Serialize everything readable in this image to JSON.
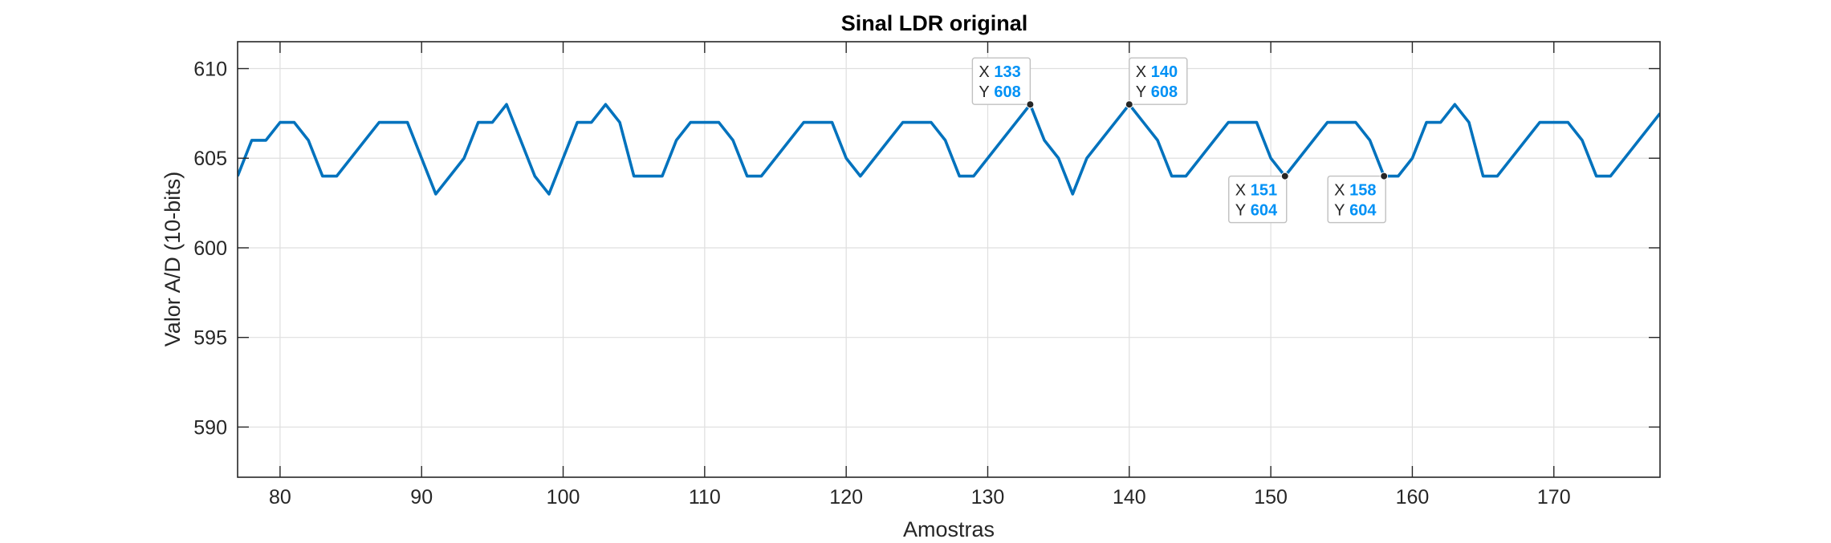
{
  "chart_data": {
    "type": "line",
    "title": "Sinal LDR original",
    "xlabel": "Amostras",
    "ylabel": "Valor A/D (10-bits)",
    "xlim": [
      77,
      177.5
    ],
    "ylim": [
      587.2,
      611.5
    ],
    "xticks": [
      80,
      90,
      100,
      110,
      120,
      130,
      140,
      150,
      160,
      170
    ],
    "yticks": [
      590,
      595,
      600,
      605,
      610
    ],
    "grid": true,
    "series": [
      {
        "color": "#0072BD",
        "x": [
          77,
          78,
          79,
          80,
          81,
          82,
          83,
          84,
          85,
          86,
          87,
          88,
          89,
          90,
          91,
          92,
          93,
          94,
          95,
          96,
          97,
          98,
          99,
          100,
          101,
          102,
          103,
          104,
          105,
          106,
          107,
          108,
          109,
          110,
          111,
          112,
          113,
          114,
          115,
          116,
          117,
          118,
          119,
          120,
          121,
          122,
          123,
          124,
          125,
          126,
          127,
          128,
          129,
          130,
          131,
          132,
          133,
          134,
          135,
          136,
          137,
          138,
          139,
          140,
          141,
          142,
          143,
          144,
          145,
          146,
          147,
          148,
          149,
          150,
          151,
          152,
          153,
          154,
          155,
          156,
          157,
          158,
          159,
          160,
          161,
          162,
          163,
          164,
          165,
          166,
          167,
          168,
          169,
          170,
          171,
          172,
          173,
          174,
          175,
          176,
          177,
          177.5
        ],
        "y": [
          604,
          606,
          606,
          607,
          607,
          606,
          604,
          604,
          605,
          606,
          607,
          607,
          607,
          605,
          603,
          604,
          605,
          607,
          607,
          608,
          606,
          604,
          603,
          605,
          607,
          607,
          608,
          607,
          604,
          604,
          604,
          606,
          607,
          607,
          607,
          606,
          604,
          604,
          605,
          606,
          607,
          607,
          607,
          605,
          604,
          605,
          606,
          607,
          607,
          607,
          606,
          604,
          604,
          605,
          606,
          607,
          608,
          606,
          605,
          603,
          605,
          606,
          607,
          608,
          607,
          606,
          604,
          604,
          605,
          606,
          607,
          607,
          607,
          605,
          604,
          605,
          606,
          607,
          607,
          607,
          606,
          604,
          604,
          605,
          607,
          607,
          608,
          607,
          604,
          604,
          605,
          606,
          607,
          607,
          607,
          606,
          604,
          604,
          605,
          606,
          607,
          607.5
        ]
      }
    ],
    "datatips": [
      {
        "x": 133,
        "y": 608,
        "x_key": "X",
        "y_key": "Y",
        "x_text": "133",
        "y_text": "608",
        "placement": "above-left"
      },
      {
        "x": 140,
        "y": 608,
        "x_key": "X",
        "y_key": "Y",
        "x_text": "140",
        "y_text": "608",
        "placement": "above-right"
      },
      {
        "x": 151,
        "y": 604,
        "x_key": "X",
        "y_key": "Y",
        "x_text": "151",
        "y_text": "604",
        "placement": "below-left"
      },
      {
        "x": 158,
        "y": 604,
        "x_key": "X",
        "y_key": "Y",
        "x_text": "158",
        "y_text": "604",
        "placement": "below-left"
      }
    ],
    "colors": {
      "line": "#0072BD",
      "grid": "#dfdfdf",
      "axes": "#262626",
      "datatip_value": "#0091f5",
      "datatip_border": "#c0c0c0"
    }
  }
}
